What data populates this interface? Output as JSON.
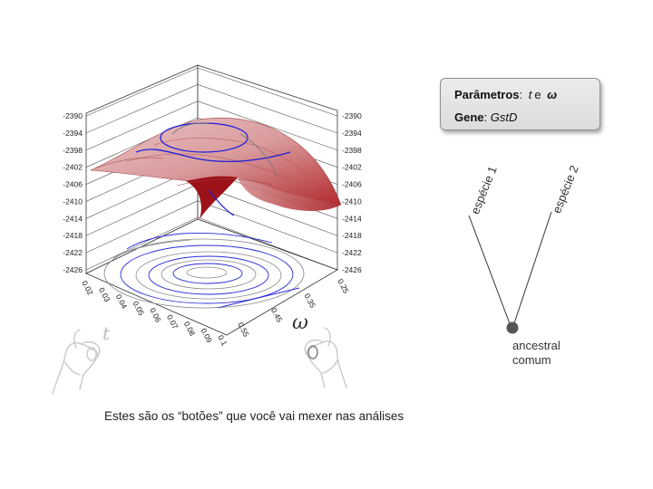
{
  "info_box": {
    "params_label": "Parâmetros",
    "param_t": "t",
    "param_and": "e",
    "param_omega": "ω",
    "gene_label": "Gene",
    "gene_value": "GstD"
  },
  "tree": {
    "species_1": "espécie 1",
    "species_2": "espécie 2",
    "ancestor_line1": "ancestral",
    "ancestor_line2": "comum"
  },
  "caption": "Estes são os “botões” que você vai mexer nas análises",
  "knob_labels": {
    "t": "t",
    "omega": "ω"
  },
  "chart_data": {
    "type": "surface3d",
    "z_ticks": [
      "-2390",
      "-2394",
      "-2398",
      "-2402",
      "-2406",
      "-2410",
      "-2414",
      "-2418",
      "-2422",
      "-2426"
    ],
    "t_ticks": [
      "0.02",
      "0.03",
      "0.04",
      "0.05",
      "0.06",
      "0.07",
      "0.08",
      "0.09",
      "0.1"
    ],
    "omega_ticks": [
      "0.25",
      "0.35",
      "0.45",
      "0.55"
    ],
    "surface_color": "#d9999b",
    "contour_color": "#1d1ddb",
    "grid_color": "#555555"
  }
}
